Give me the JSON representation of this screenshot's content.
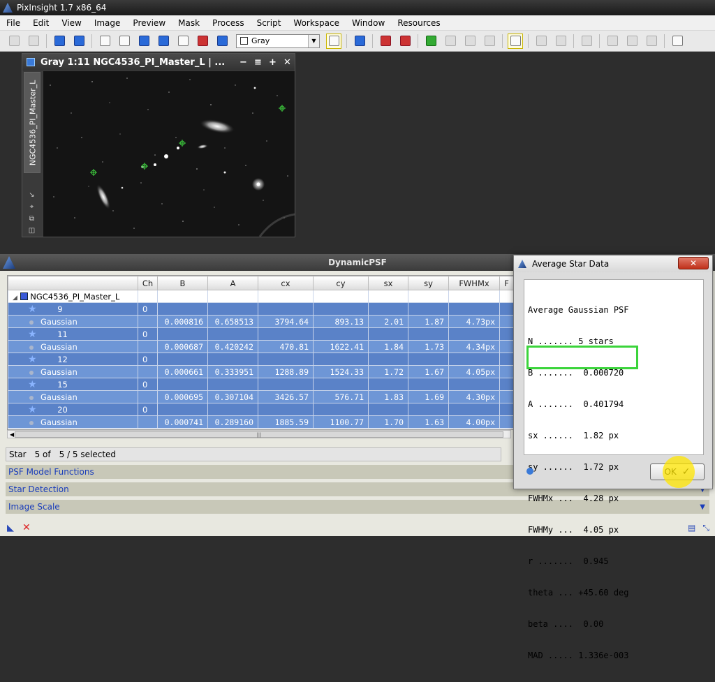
{
  "app_title": "PixInsight 1.7 x86_64",
  "menu": [
    "File",
    "Edit",
    "View",
    "Image",
    "Preview",
    "Mask",
    "Process",
    "Script",
    "Workspace",
    "Window",
    "Resources"
  ],
  "toolbar": {
    "color_mode": "Gray"
  },
  "image_window": {
    "title": "Gray 1:11 NGC4536_PI_Master_L | ...",
    "side_tab": "NGC4536_PI_Master_L",
    "controls": [
      "−",
      "≡",
      "+",
      "✕"
    ]
  },
  "dynamic_psf": {
    "title": "DynamicPSF",
    "columns": [
      "Ch",
      "B",
      "A",
      "cx",
      "cy",
      "sx",
      "sy",
      "FWHMx",
      "F"
    ],
    "root": "NGC4536_PI_Master_L",
    "stars": [
      {
        "id": "9",
        "ch": "0",
        "fn": "Gaussian",
        "B": "0.000816",
        "A": "0.658513",
        "cx": "3794.64",
        "cy": "893.13",
        "sx": "2.01",
        "sy": "1.87",
        "fwhmx": "4.73px"
      },
      {
        "id": "11",
        "ch": "0",
        "fn": "Gaussian",
        "B": "0.000687",
        "A": "0.420242",
        "cx": "470.81",
        "cy": "1622.41",
        "sx": "1.84",
        "sy": "1.73",
        "fwhmx": "4.34px"
      },
      {
        "id": "12",
        "ch": "0",
        "fn": "Gaussian",
        "B": "0.000661",
        "A": "0.333951",
        "cx": "1288.89",
        "cy": "1524.33",
        "sx": "1.72",
        "sy": "1.67",
        "fwhmx": "4.05px"
      },
      {
        "id": "15",
        "ch": "0",
        "fn": "Gaussian",
        "B": "0.000695",
        "A": "0.307104",
        "cx": "3426.57",
        "cy": "576.71",
        "sx": "1.83",
        "sy": "1.69",
        "fwhmx": "4.30px"
      },
      {
        "id": "20",
        "ch": "0",
        "fn": "Gaussian",
        "B": "0.000741",
        "A": "0.289160",
        "cx": "1885.59",
        "cy": "1100.77",
        "sx": "1.70",
        "sy": "1.63",
        "fwhmx": "4.00px"
      }
    ],
    "status": {
      "label": "Star",
      "count": "5 of",
      "selected": "5 / 5 selected"
    },
    "sections": [
      "PSF Model Functions",
      "Star Detection",
      "Image Scale"
    ]
  },
  "dialog": {
    "title": "Average Star Data",
    "close": "✕",
    "lines": [
      "Average Gaussian PSF",
      "N ....... 5 stars",
      "B .......  0.000720",
      "A .......  0.401794",
      "sx ......  1.82 px",
      "sy ......  1.72 px",
      "FWHMx ...  4.28 px",
      "FWHMy ...  4.05 px",
      "r .......  0.945",
      "theta ... +45.60 deg",
      "beta ....  0.00",
      "MAD ..... 1.336e-003"
    ],
    "ok": "OK"
  }
}
